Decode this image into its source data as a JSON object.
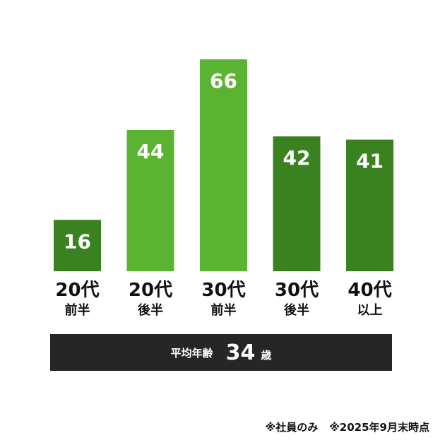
{
  "chart_data": {
    "type": "bar",
    "categories": [
      {
        "main": "20代",
        "sub": "前半"
      },
      {
        "main": "20代",
        "sub": "後半"
      },
      {
        "main": "30代",
        "sub": "前半"
      },
      {
        "main": "30代",
        "sub": "後半"
      },
      {
        "main": "40代",
        "sub": "以上"
      }
    ],
    "values": [
      16,
      44,
      66,
      42,
      41
    ],
    "colors": [
      "#3a821f",
      "#5bb431",
      "#5bb431",
      "#3a821f",
      "#3a821f"
    ],
    "ylim": [
      0,
      66
    ]
  },
  "average": {
    "label": "平均年齢",
    "value": "34",
    "unit": "歳"
  },
  "footnotes": [
    "※社員のみ",
    "※2025年9月末時点"
  ]
}
